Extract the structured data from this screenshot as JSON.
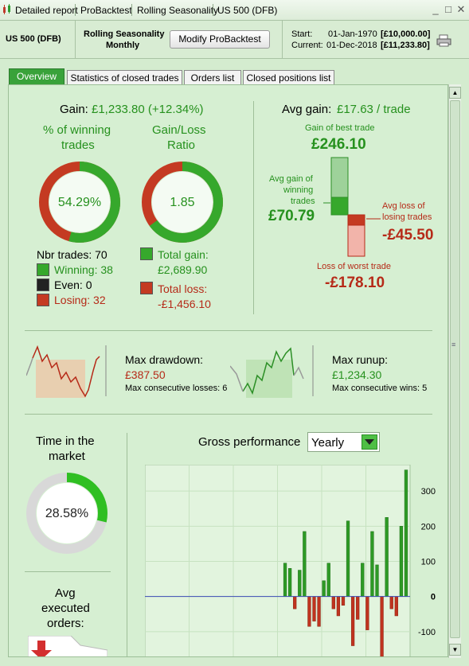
{
  "titlebar": {
    "tabs": [
      "Detailed report",
      "ProBacktest",
      "Rolling Seasonality",
      "US 500 (DFB)"
    ]
  },
  "header": {
    "instrument": "US 500 (DFB)",
    "strategy_line1": "Rolling Seasonality",
    "strategy_line2": "Monthly",
    "modify_button": "Modify ProBacktest",
    "start_label": "Start:",
    "start_date": "01-Jan-1970",
    "start_value": "[£10,000.00]",
    "current_label": "Current:",
    "current_date": "01-Dec-2018",
    "current_value": "[£11,233.80]"
  },
  "tabs": [
    "Overview",
    "Statistics of closed trades",
    "Orders list",
    "Closed positions list"
  ],
  "overview": {
    "gain_label": "Gain:",
    "gain_value": "£1,233.80 (+12.34%)",
    "winning_title_1": "% of winning",
    "winning_title_2": "trades",
    "winning_pct": "54.29%",
    "winning_fraction": 0.5429,
    "ratio_title_1": "Gain/Loss",
    "ratio_title_2": "Ratio",
    "ratio_value": "1.85",
    "ratio_fraction": 0.649,
    "nbr_trades": "Nbr trades: 70",
    "winning": "Winning: 38",
    "even": "Even: 0",
    "losing": "Losing: 32",
    "total_gain_label": "Total gain:",
    "total_gain": "£2,689.90",
    "total_loss_label": "Total loss:",
    "total_loss": "-£1,456.10",
    "avg_gain_label": "Avg gain:",
    "avg_gain_value": "£17.63 / trade",
    "best_label": "Gain of best trade",
    "best_value": "£246.10",
    "avg_win_label_1": "Avg gain of",
    "avg_win_label_2": "winning",
    "avg_win_label_3": "trades",
    "avg_win_value": "£70.79",
    "avg_loss_label_1": "Avg loss of",
    "avg_loss_label_2": "losing trades",
    "avg_loss_value": "-£45.50",
    "worst_label": "Loss of worst trade",
    "worst_value": "-£178.10",
    "drawdown_label": "Max drawdown:",
    "drawdown_value": "£387.50",
    "consec_losses": "Max consecutive losses: 6",
    "runup_label": "Max runup:",
    "runup_value": "£1,234.30",
    "consec_wins": "Max consecutive wins: 5",
    "time_label_1": "Time in the",
    "time_label_2": "market",
    "time_pct": "28.58%",
    "time_fraction": 0.2858,
    "exec_label_1": "Avg",
    "exec_label_2": "executed",
    "exec_label_3": "orders:",
    "gross_label": "Gross performance",
    "period_select": "Yearly"
  },
  "chart_data": {
    "type": "bar",
    "title": "Gross performance",
    "ylim": [
      -175,
      375
    ],
    "yticks": [
      "300",
      "200",
      "100",
      "0",
      "-100"
    ],
    "values": [
      95,
      80,
      -35,
      75,
      185,
      -85,
      -70,
      -85,
      45,
      95,
      -35,
      -55,
      -25,
      215,
      -140,
      -65,
      95,
      -95,
      185,
      90,
      -195,
      225,
      -35,
      -55,
      200,
      360
    ]
  },
  "colors": {
    "green": "#26911e",
    "red": "#b62a18",
    "accent": "#39a23a"
  }
}
